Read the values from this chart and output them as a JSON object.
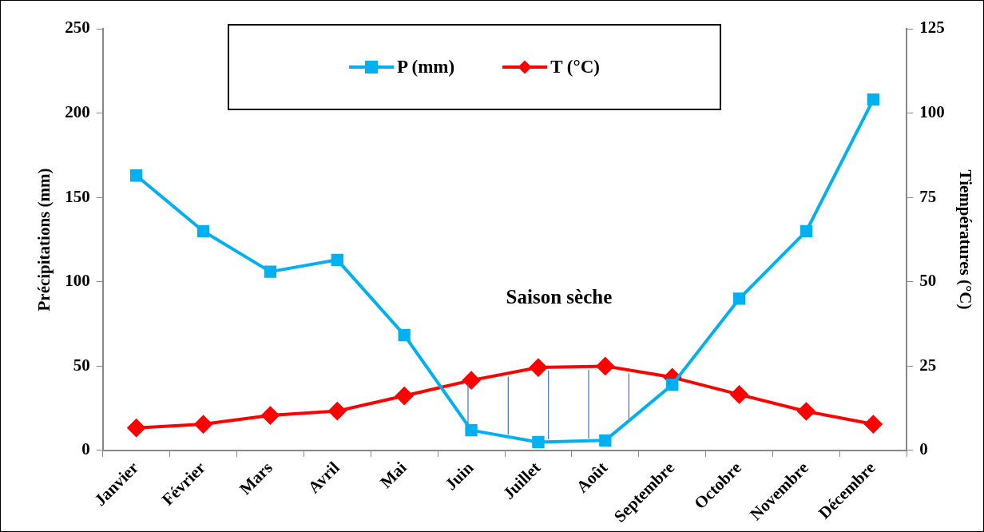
{
  "chart_data": {
    "type": "line",
    "categories": [
      "Janvier",
      "Février",
      "Mars",
      "Avril",
      "Mai",
      "Juin",
      "Juillet",
      "Août",
      "Septembre",
      "Octobre",
      "Novembre",
      "Décembre"
    ],
    "series": [
      {
        "name": "P (mm)",
        "color": "#00b0f0",
        "marker": "square",
        "values": [
          163,
          130,
          106,
          113,
          68.5,
          12,
          5,
          6,
          39,
          90,
          130,
          208
        ]
      },
      {
        "name": "T (°C)",
        "color": "#ff0000",
        "marker": "diamond",
        "axis": "y2",
        "values": [
          6.7,
          7.8,
          10.4,
          11.7,
          16.2,
          20.8,
          24.6,
          25,
          21.7,
          16.6,
          11.6,
          7.8
        ]
      }
    ],
    "ylabel": "Précipitations (mm)",
    "y2label": "Tiempératures (°C)",
    "ylim": [
      0,
      250
    ],
    "yticks": [
      0,
      50,
      100,
      150,
      200,
      250
    ],
    "y2lim": [
      0,
      125
    ],
    "y2ticks": [
      0,
      25,
      50,
      75,
      100,
      125
    ],
    "annotations": [
      "Saison sèche"
    ],
    "grid": false,
    "legend": "top",
    "line_style": "solid"
  }
}
